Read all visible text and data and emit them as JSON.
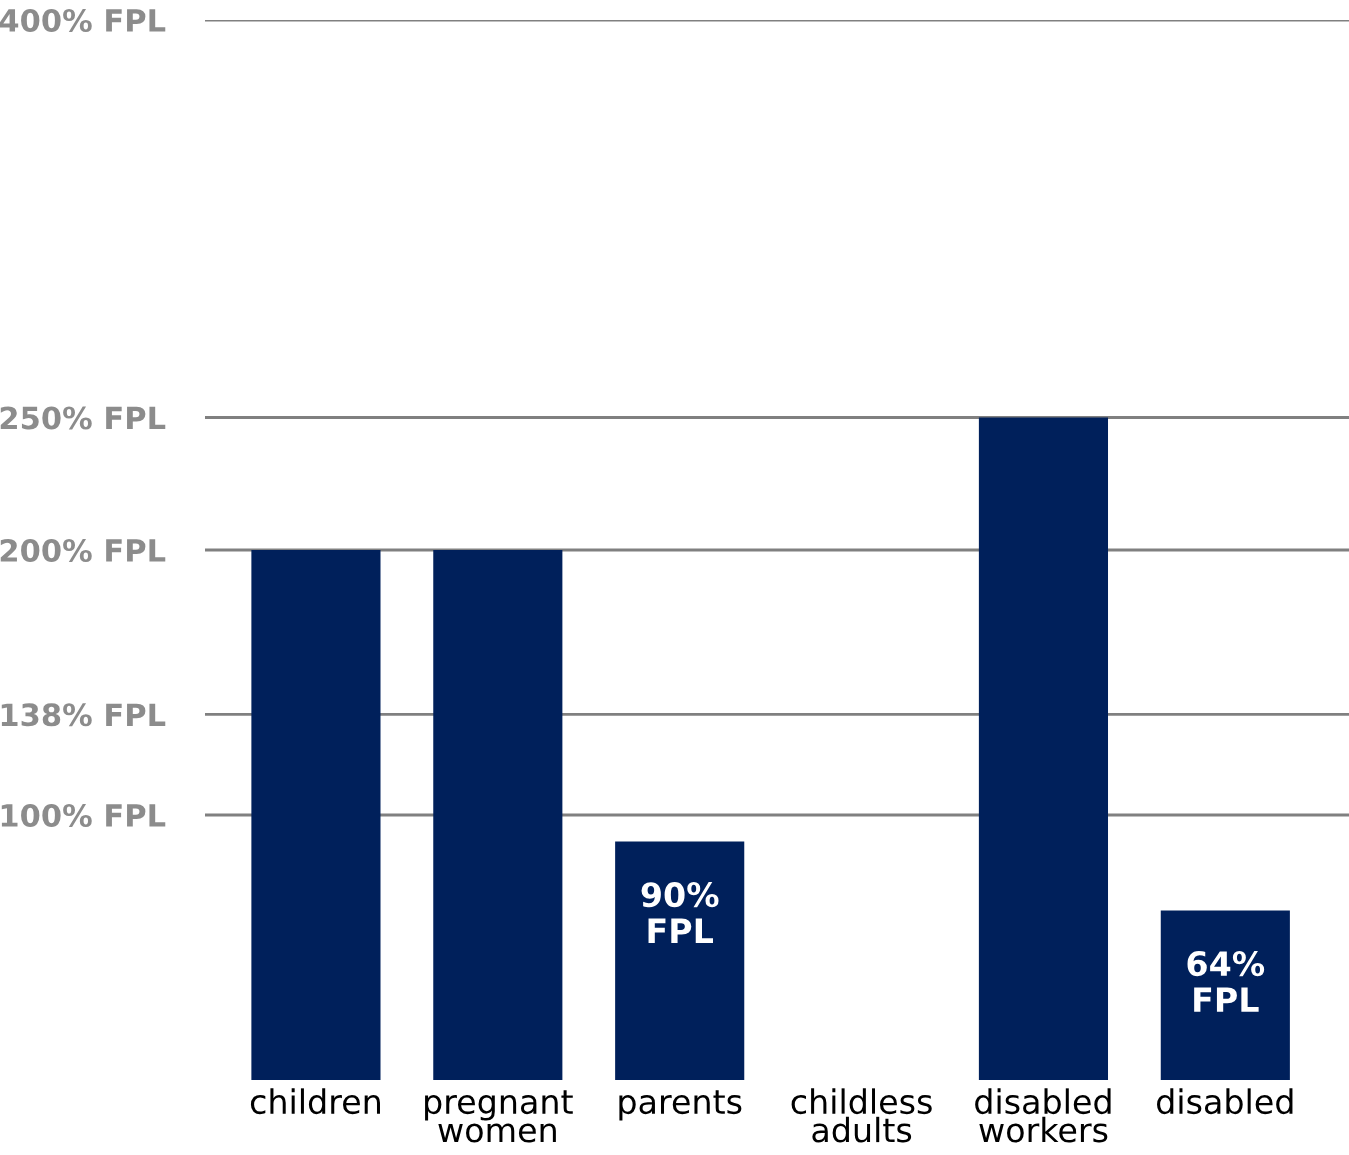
{
  "chart_data": {
    "type": "bar",
    "categories": [
      "children",
      "pregnant\nwomen",
      "parents",
      "childless\nadults",
      "disabled\nworkers",
      "disabled"
    ],
    "values": [
      200,
      200,
      90,
      0,
      250,
      64
    ],
    "color": "#00205b",
    "value_labels": [
      null,
      null,
      "90%\nFPL",
      null,
      null,
      "64%\nFPL"
    ],
    "ylim": [
      0,
      400
    ],
    "yticks": [
      {
        "value": 100,
        "label": "100% FPL"
      },
      {
        "value": 138,
        "label": "138% FPL"
      },
      {
        "value": 200,
        "label": "200% FPL"
      },
      {
        "value": 250,
        "label": "250% FPL"
      },
      {
        "value": 400,
        "label": "400% FPL"
      }
    ],
    "grid": "y",
    "legend": false
  }
}
